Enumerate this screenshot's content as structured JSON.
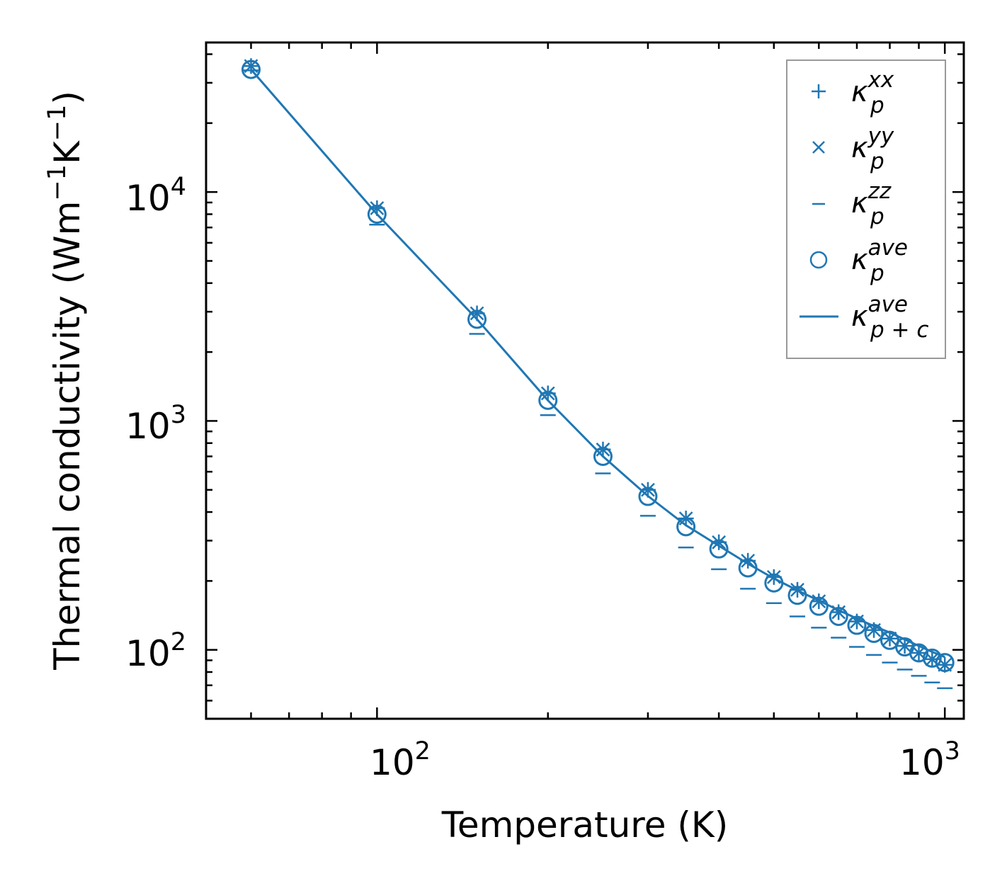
{
  "chart_data": {
    "type": "scatter",
    "title": "",
    "xlabel": "Temperature (K)",
    "ylabel": {
      "prefix": "Thermal conductivity (Wm",
      "sup1": "−1",
      "mid": "K",
      "sup2": "−1",
      "suffix": ")"
    },
    "xscale": "log",
    "yscale": "log",
    "xlim": [
      50,
      1080
    ],
    "ylim": [
      50,
      45000
    ],
    "grid": false,
    "legend_position": "top-right",
    "x_ticks": [
      {
        "base": "10",
        "exp": "2",
        "value": 100
      },
      {
        "base": "10",
        "exp": "3",
        "value": 1000
      }
    ],
    "y_ticks": [
      {
        "base": "10",
        "exp": "2",
        "value": 100
      },
      {
        "base": "10",
        "exp": "3",
        "value": 1000
      },
      {
        "base": "10",
        "exp": "4",
        "value": 10000
      }
    ],
    "x": [
      60,
      100,
      150,
      200,
      250,
      300,
      350,
      400,
      450,
      500,
      550,
      600,
      650,
      700,
      750,
      800,
      850,
      900,
      950,
      1000
    ],
    "series": [
      {
        "name": "kappa_p_xx",
        "label": "κ",
        "sub": "p",
        "sup": "xx",
        "marker": "plus",
        "values": [
          35500,
          8500,
          2950,
          1320,
          750,
          500,
          375,
          295,
          245,
          208,
          183,
          163,
          146,
          133,
          122,
          112,
          104,
          97,
          91,
          86
        ]
      },
      {
        "name": "kappa_p_yy",
        "label": "κ",
        "sub": "p",
        "sup": "yy",
        "marker": "x",
        "values": [
          35500,
          8500,
          2950,
          1320,
          750,
          500,
          375,
          295,
          245,
          208,
          183,
          163,
          146,
          133,
          122,
          112,
          104,
          97,
          91,
          86
        ]
      },
      {
        "name": "kappa_p_zz",
        "label": "κ",
        "sub": "p",
        "sup": "zz",
        "marker": "hline",
        "values": [
          34000,
          7200,
          2400,
          1060,
          590,
          385,
          280,
          225,
          185,
          160,
          140,
          125,
          113,
          103,
          95,
          88,
          82,
          77,
          72,
          68
        ]
      },
      {
        "name": "kappa_p_ave",
        "label": "κ",
        "sub": "p",
        "sup": "ave",
        "marker": "circle",
        "values": [
          34300,
          8000,
          2780,
          1230,
          700,
          468,
          345,
          276,
          228,
          196,
          173,
          155,
          140,
          128,
          118,
          110,
          103,
          97,
          92,
          88
        ]
      },
      {
        "name": "kappa_pc_ave",
        "label": "κ",
        "sub": "p + c",
        "sup": "ave",
        "marker": "line",
        "values": [
          34300,
          8000,
          2780,
          1230,
          700,
          470,
          350,
          285,
          238,
          205,
          182,
          164,
          149,
          137,
          127,
          119,
          111,
          104,
          98,
          93
        ]
      }
    ],
    "colors": {
      "series": "#1f77b4",
      "axis": "#000000",
      "legend_frame": "#999999"
    }
  }
}
